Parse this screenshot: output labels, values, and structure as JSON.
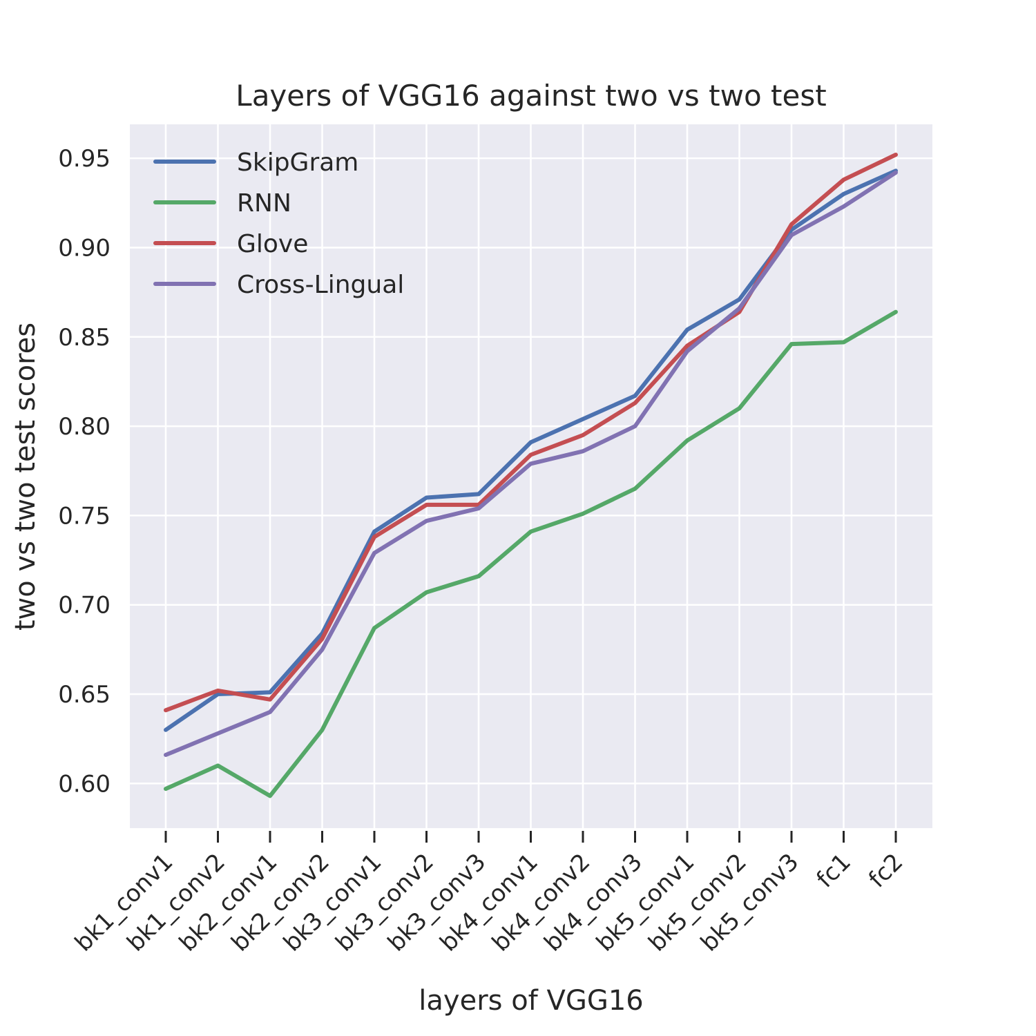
{
  "chart_data": {
    "type": "line",
    "title": "Layers of VGG16 against two vs two test",
    "xlabel": "layers of VGG16",
    "ylabel": "two vs two test scores",
    "categories": [
      "bk1_conv1",
      "bk1_conv2",
      "bk2_conv1",
      "bk2_conv2",
      "bk3_conv1",
      "bk3_conv2",
      "bk3_conv3",
      "bk4_conv1",
      "bk4_conv2",
      "bk4_conv3",
      "bk5_conv1",
      "bk5_conv2",
      "bk5_conv3",
      "fc1",
      "fc2"
    ],
    "ylim": [
      0.575,
      0.969
    ],
    "yticks": [
      0.6,
      0.65,
      0.7,
      0.75,
      0.8,
      0.85,
      0.9,
      0.95
    ],
    "ytick_labels": [
      "0.60",
      "0.65",
      "0.70",
      "0.75",
      "0.80",
      "0.85",
      "0.90",
      "0.95"
    ],
    "grid": true,
    "legend_position": "top-left",
    "series": [
      {
        "name": "SkipGram",
        "color": "#4C72B0",
        "values": [
          0.63,
          0.65,
          0.651,
          0.684,
          0.741,
          0.76,
          0.762,
          0.791,
          0.804,
          0.817,
          0.854,
          0.871,
          0.91,
          0.93,
          0.943
        ]
      },
      {
        "name": "RNN",
        "color": "#55A868",
        "values": [
          0.597,
          0.61,
          0.593,
          0.63,
          0.687,
          0.707,
          0.716,
          0.741,
          0.751,
          0.765,
          0.792,
          0.81,
          0.846,
          0.847,
          0.864
        ]
      },
      {
        "name": "Glove",
        "color": "#C44E52",
        "values": [
          0.641,
          0.652,
          0.647,
          0.681,
          0.738,
          0.756,
          0.756,
          0.784,
          0.795,
          0.813,
          0.845,
          0.864,
          0.913,
          0.938,
          0.952
        ]
      },
      {
        "name": "Cross-Lingual",
        "color": "#8172B2",
        "values": [
          0.616,
          0.628,
          0.64,
          0.675,
          0.729,
          0.747,
          0.754,
          0.779,
          0.786,
          0.8,
          0.842,
          0.866,
          0.907,
          0.923,
          0.942
        ]
      }
    ]
  }
}
